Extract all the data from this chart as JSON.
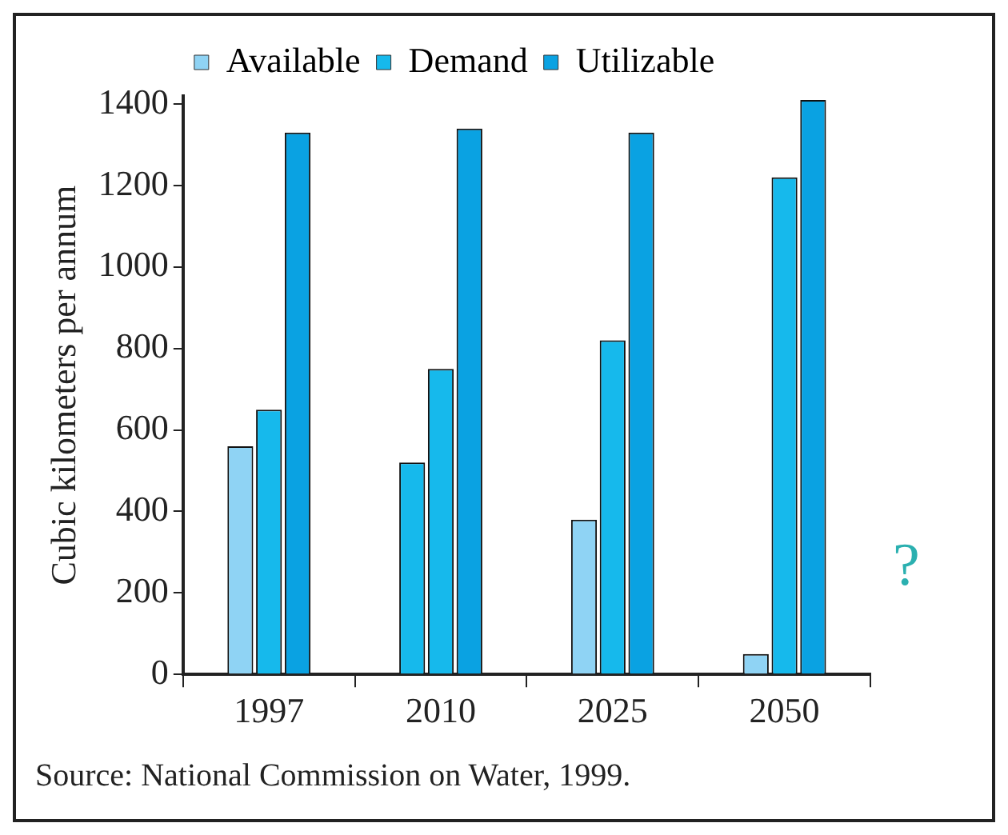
{
  "chart_data": {
    "type": "bar",
    "ylabel": "Cubic kilometers per annum",
    "categories": [
      "1997",
      "2010",
      "2025",
      "2050"
    ],
    "series": [
      {
        "name": "Available",
        "color": "#8fd3f4",
        "colors": [
          "#8fd3f4",
          "#16b9ec",
          "#8fd3f4",
          "#8fd3f4"
        ],
        "values": [
          560,
          520,
          380,
          50
        ]
      },
      {
        "name": "Demand",
        "color": "#16b9ec",
        "values": [
          650,
          750,
          820,
          1220
        ]
      },
      {
        "name": "Utilizable",
        "color": "#0aa2e2",
        "values": [
          1330,
          1340,
          1330,
          1410
        ]
      }
    ],
    "ylim": [
      0,
      1420
    ],
    "yticks": [
      0,
      200,
      400,
      600,
      800,
      1000,
      1200,
      1400
    ],
    "grid": false,
    "legend": "top",
    "annotations": [
      "?",
      "Source: National Commission on Water, 1999."
    ]
  }
}
